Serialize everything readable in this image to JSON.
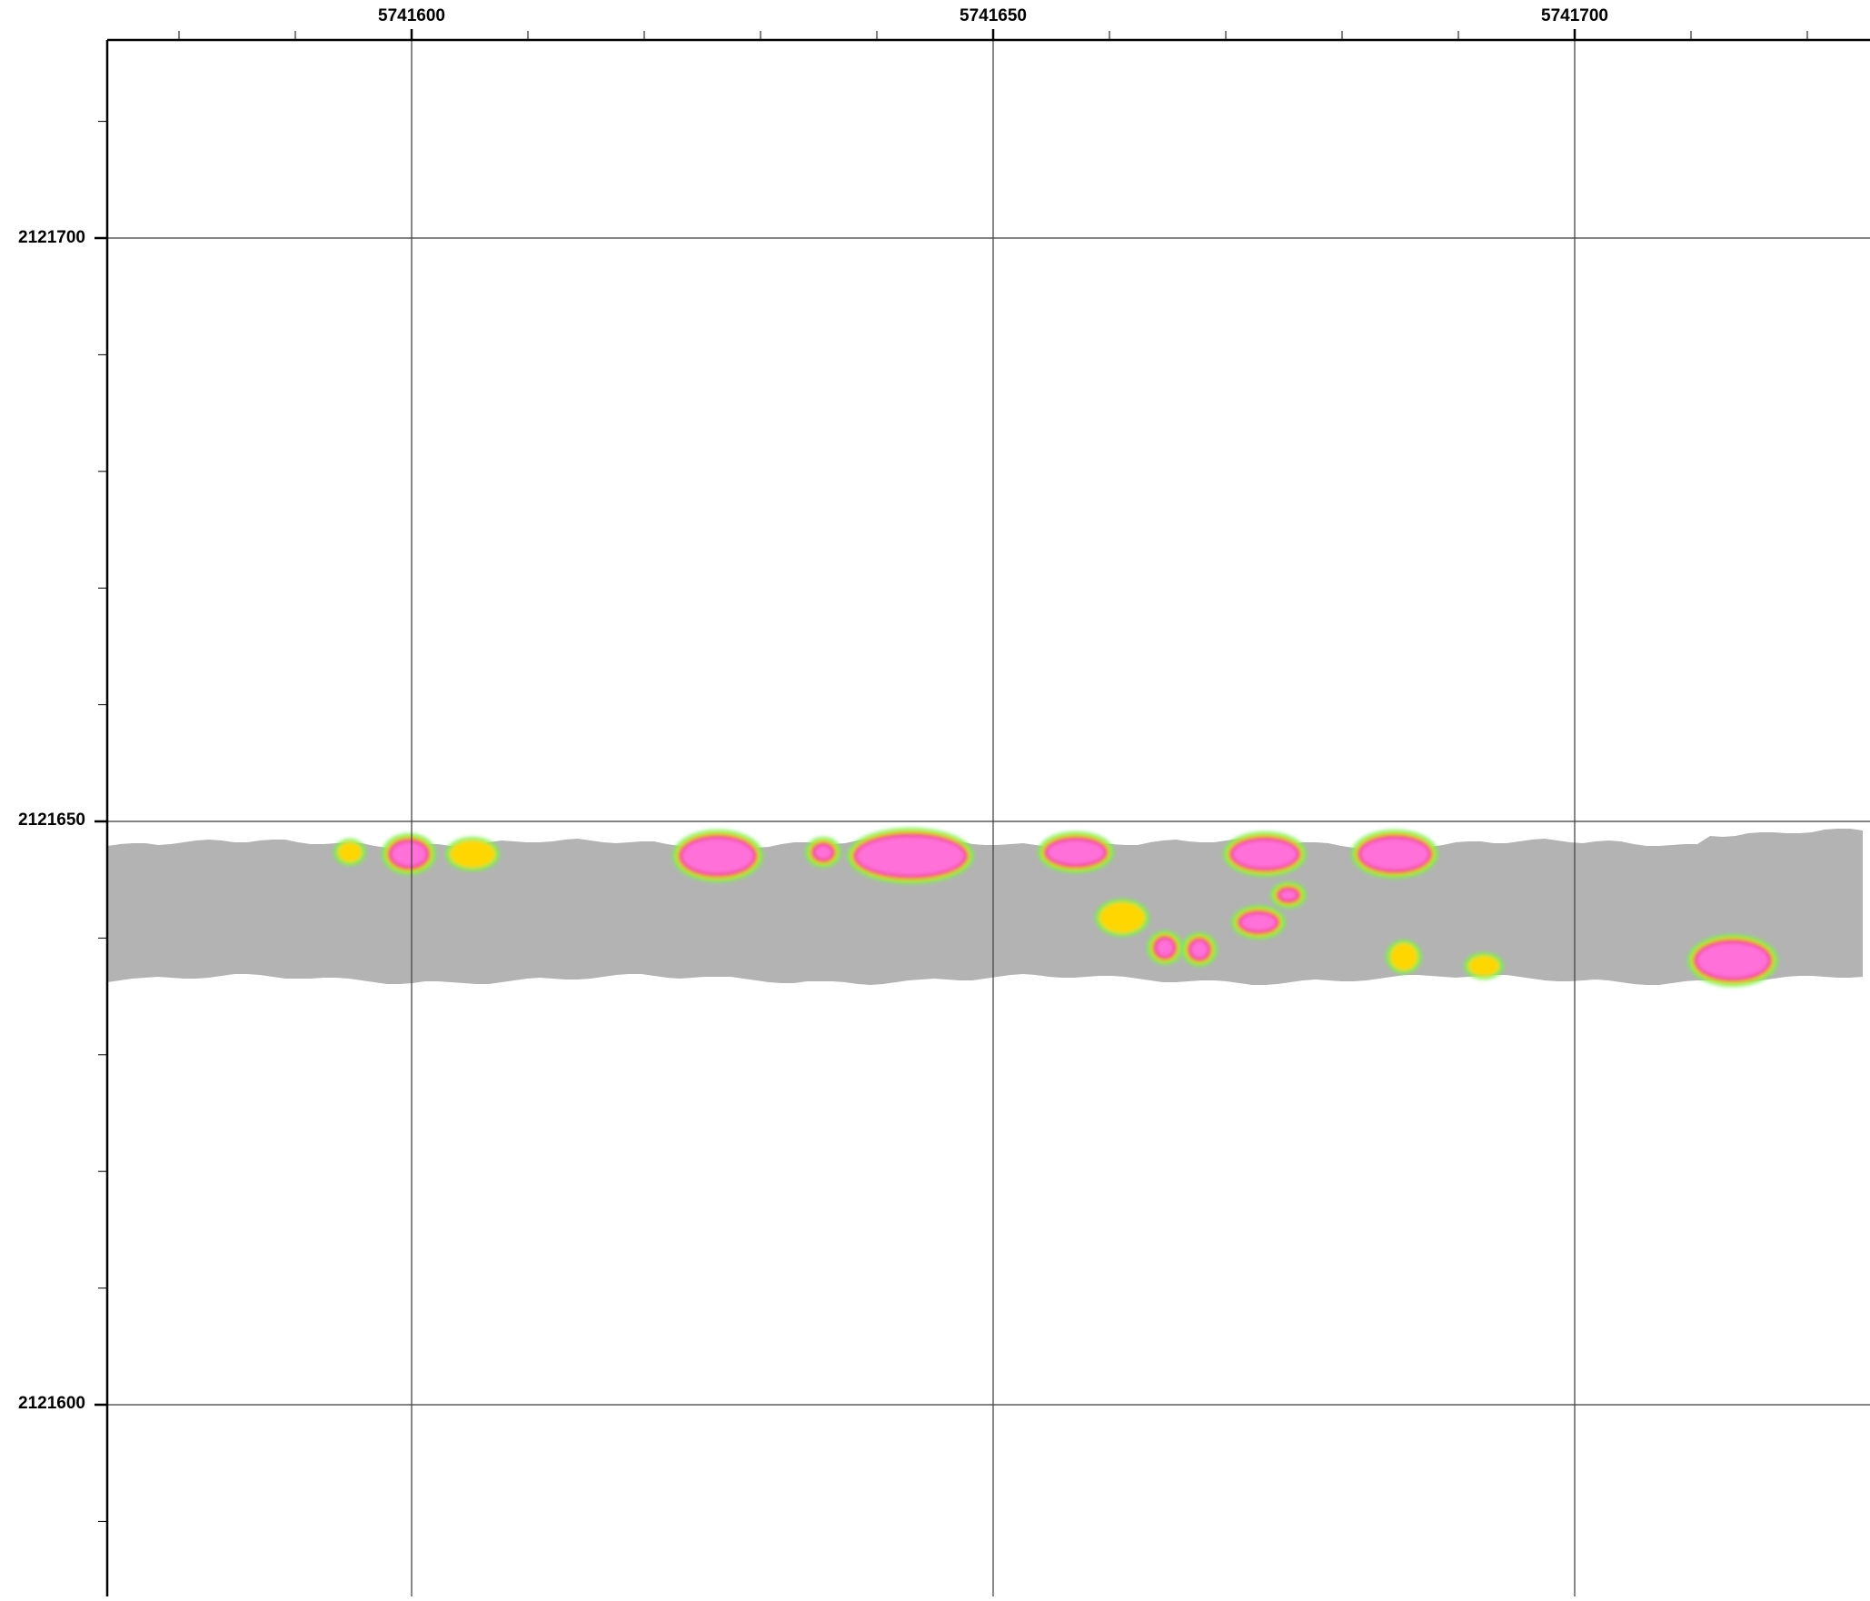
{
  "map": {
    "x_axis": {
      "labels": [
        "5741600",
        "5741650",
        "5741700"
      ],
      "values": [
        5741600,
        5741650,
        5741700
      ],
      "minor_tick_interval": 10
    },
    "y_axis": {
      "labels": [
        "2121700",
        "2121650",
        "2121600"
      ],
      "values": [
        2121700,
        2121650,
        2121600
      ],
      "minor_tick_interval": 10
    },
    "colors": {
      "frame": "#000000",
      "grid": "#3a3a3a",
      "survey_strip": "#b3b3b3",
      "anomaly_core": "#ff6fd8",
      "anomaly_rim": "#e8004a",
      "anomaly_mid": "#ffd600",
      "anomaly_low": "#7cf04a"
    },
    "legend": "none"
  }
}
